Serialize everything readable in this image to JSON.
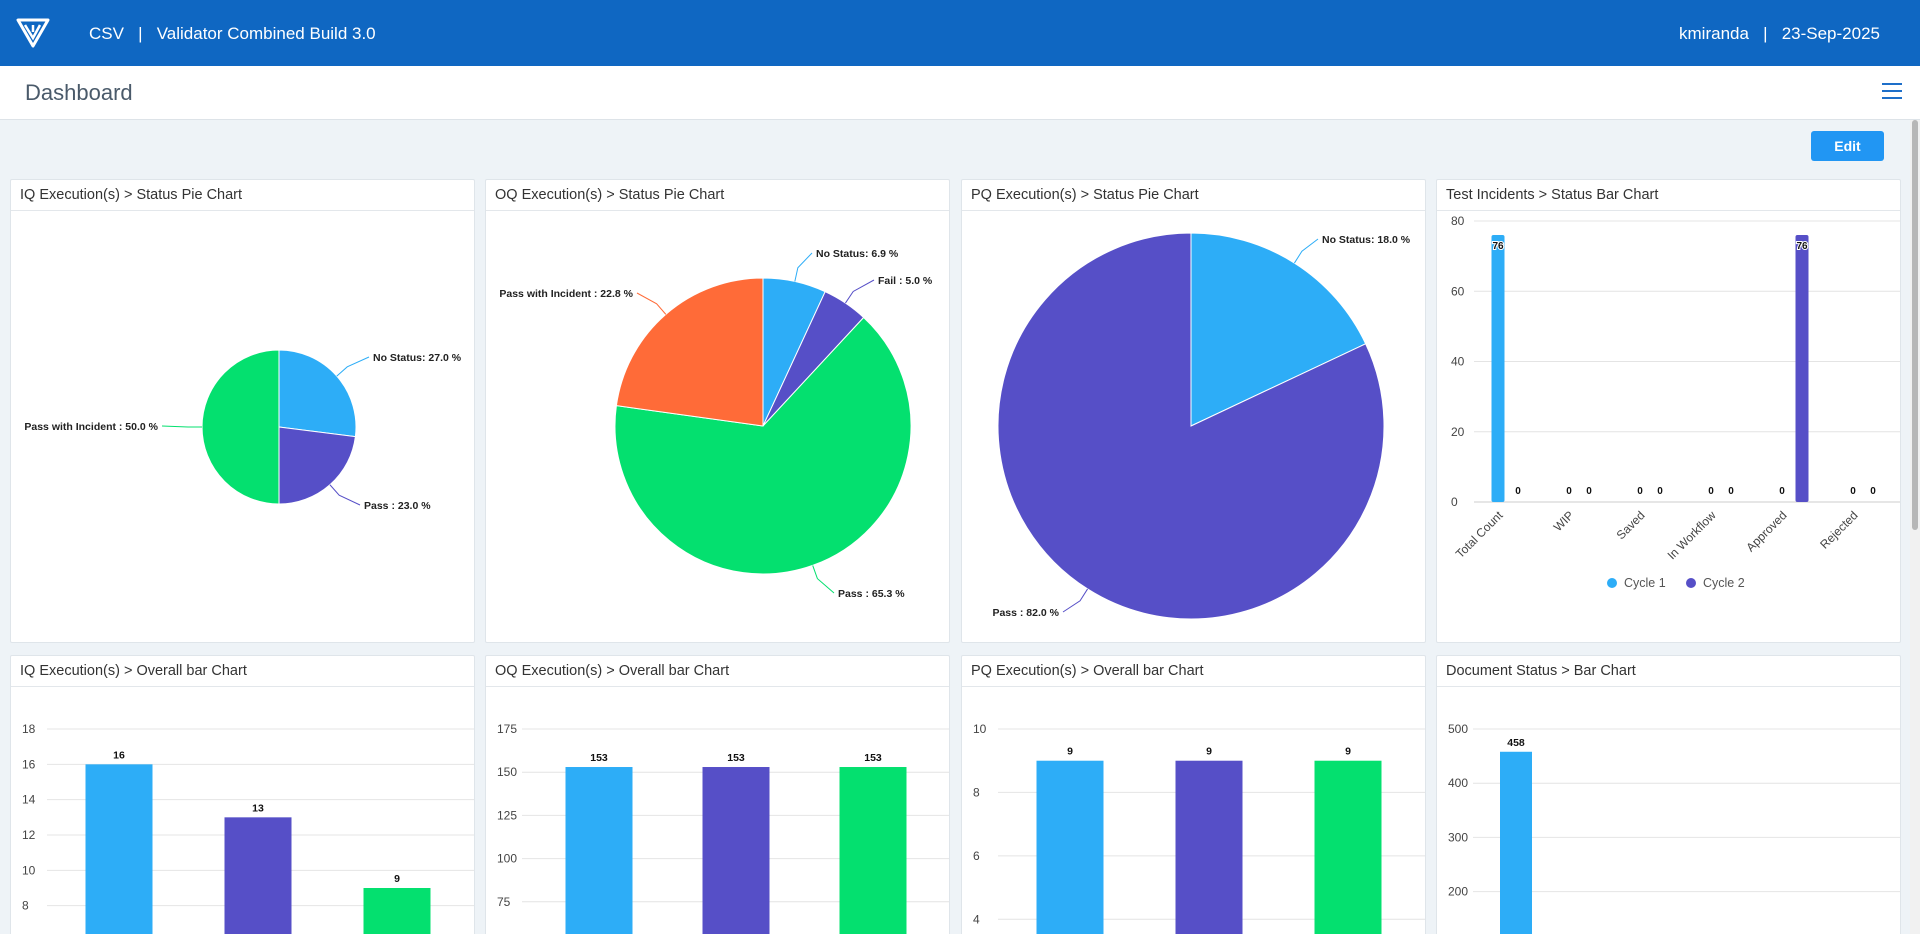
{
  "header": {
    "app_title": "CSV   |   Validator Combined Build 3.0",
    "user_area": "kmiranda   |   23-Sep-2025"
  },
  "page": {
    "title": "Dashboard",
    "edit_label": "Edit"
  },
  "colors": {
    "header": "#0f67c2",
    "cyan": "#2dadf7",
    "purple": "#564fc7",
    "green": "#04e06f",
    "orange": "#ff6b38"
  },
  "icons": {
    "logo": "validator-logo-icon",
    "menu": "hamburger-menu-icon"
  },
  "cards": {
    "iq_pie": "IQ Execution(s) > Status Pie Chart",
    "oq_pie": "OQ Execution(s) > Status Pie Chart",
    "pq_pie": "PQ Execution(s) > Status Pie Chart",
    "ti_bar": "Test Incidents > Status Bar Chart",
    "iq_bar": "IQ Execution(s) > Overall bar Chart",
    "oq_bar": "OQ Execution(s) > Overall bar Chart",
    "pq_bar": "PQ Execution(s) > Overall bar Chart",
    "doc_bar": "Document Status > Bar Chart"
  },
  "chart_data": [
    {
      "id": "iq_pie",
      "type": "pie",
      "slices": [
        {
          "label": "No Status",
          "value": 27.0,
          "text": "No Status: 27.0 %",
          "color": "#2dadf7"
        },
        {
          "label": "Pass",
          "value": 23.0,
          "text": "Pass : 23.0 %",
          "color": "#564fc7"
        },
        {
          "label": "Pass with Incident",
          "value": 50.0,
          "text": "Pass with Incident : 50.0 %",
          "color": "#04e06f"
        }
      ]
    },
    {
      "id": "oq_pie",
      "type": "pie",
      "slices": [
        {
          "label": "No Status",
          "value": 6.9,
          "text": "No Status: 6.9 %",
          "color": "#2dadf7"
        },
        {
          "label": "Fail",
          "value": 5.0,
          "text": "Fail : 5.0 %",
          "color": "#564fc7"
        },
        {
          "label": "Pass",
          "value": 65.3,
          "text": "Pass : 65.3 %",
          "color": "#04e06f"
        },
        {
          "label": "Pass with Incident",
          "value": 22.8,
          "text": "Pass with Incident : 22.8 %",
          "color": "#ff6b38"
        }
      ]
    },
    {
      "id": "pq_pie",
      "type": "pie",
      "slices": [
        {
          "label": "No Status",
          "value": 18.0,
          "text": "No Status: 18.0 %",
          "color": "#2dadf7"
        },
        {
          "label": "Pass",
          "value": 82.0,
          "text": "Pass : 82.0 %",
          "color": "#564fc7"
        }
      ]
    },
    {
      "id": "ti_bar",
      "type": "bar",
      "categories": [
        "Total Count",
        "WIP",
        "Saved",
        "In Workflow",
        "Approved",
        "Rejected"
      ],
      "series": [
        {
          "name": "Cycle 1",
          "values": [
            76,
            0,
            0,
            0,
            0,
            0
          ],
          "color": "#2dadf7"
        },
        {
          "name": "Cycle 2",
          "values": [
            0,
            0,
            0,
            0,
            76,
            0
          ],
          "color": "#564fc7"
        }
      ],
      "ylim": [
        0,
        80
      ],
      "yticks": [
        0,
        20,
        40,
        60,
        80
      ],
      "legend": "bottom",
      "grid": true
    },
    {
      "id": "iq_bar",
      "type": "bar",
      "values": [
        16,
        13,
        9
      ],
      "colors": [
        "#2dadf7",
        "#564fc7",
        "#04e06f"
      ],
      "yticks": [
        8,
        10,
        12,
        14,
        16,
        18
      ],
      "ymax": 18,
      "grid": true
    },
    {
      "id": "oq_bar",
      "type": "bar",
      "values": [
        153,
        153,
        153
      ],
      "colors": [
        "#2dadf7",
        "#564fc7",
        "#04e06f"
      ],
      "yticks": [
        75,
        100,
        125,
        150,
        175
      ],
      "ymax": 175,
      "grid": true
    },
    {
      "id": "pq_bar",
      "type": "bar",
      "values": [
        9,
        9,
        9
      ],
      "colors": [
        "#2dadf7",
        "#564fc7",
        "#04e06f"
      ],
      "yticks": [
        4,
        6,
        8,
        10
      ],
      "ymax": 10,
      "grid": true
    },
    {
      "id": "doc_bar",
      "type": "bar",
      "values": [
        458
      ],
      "colors": [
        "#2dadf7"
      ],
      "yticks": [
        200,
        300,
        400,
        500
      ],
      "ymax": 500,
      "grid": true
    }
  ]
}
